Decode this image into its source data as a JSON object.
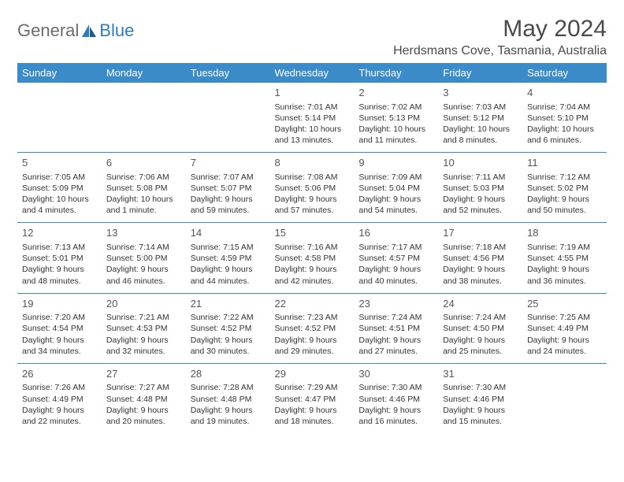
{
  "logo": {
    "general": "General",
    "blue": "Blue"
  },
  "title": "May 2024",
  "location": "Herdsmans Cove, Tasmania, Australia",
  "colors": {
    "header_bg": "#3b8bc9",
    "header_text": "#ffffff",
    "border": "#3b8bc9",
    "text": "#333333",
    "title_text": "#4a4a4a",
    "logo_general": "#6b6b6b",
    "logo_blue": "#2d7cc0"
  },
  "day_headers": [
    "Sunday",
    "Monday",
    "Tuesday",
    "Wednesday",
    "Thursday",
    "Friday",
    "Saturday"
  ],
  "weeks": [
    [
      null,
      null,
      null,
      {
        "n": "1",
        "sr": "Sunrise: 7:01 AM",
        "ss": "Sunset: 5:14 PM",
        "dl": "Daylight: 10 hours and 13 minutes."
      },
      {
        "n": "2",
        "sr": "Sunrise: 7:02 AM",
        "ss": "Sunset: 5:13 PM",
        "dl": "Daylight: 10 hours and 11 minutes."
      },
      {
        "n": "3",
        "sr": "Sunrise: 7:03 AM",
        "ss": "Sunset: 5:12 PM",
        "dl": "Daylight: 10 hours and 8 minutes."
      },
      {
        "n": "4",
        "sr": "Sunrise: 7:04 AM",
        "ss": "Sunset: 5:10 PM",
        "dl": "Daylight: 10 hours and 6 minutes."
      }
    ],
    [
      {
        "n": "5",
        "sr": "Sunrise: 7:05 AM",
        "ss": "Sunset: 5:09 PM",
        "dl": "Daylight: 10 hours and 4 minutes."
      },
      {
        "n": "6",
        "sr": "Sunrise: 7:06 AM",
        "ss": "Sunset: 5:08 PM",
        "dl": "Daylight: 10 hours and 1 minute."
      },
      {
        "n": "7",
        "sr": "Sunrise: 7:07 AM",
        "ss": "Sunset: 5:07 PM",
        "dl": "Daylight: 9 hours and 59 minutes."
      },
      {
        "n": "8",
        "sr": "Sunrise: 7:08 AM",
        "ss": "Sunset: 5:06 PM",
        "dl": "Daylight: 9 hours and 57 minutes."
      },
      {
        "n": "9",
        "sr": "Sunrise: 7:09 AM",
        "ss": "Sunset: 5:04 PM",
        "dl": "Daylight: 9 hours and 54 minutes."
      },
      {
        "n": "10",
        "sr": "Sunrise: 7:11 AM",
        "ss": "Sunset: 5:03 PM",
        "dl": "Daylight: 9 hours and 52 minutes."
      },
      {
        "n": "11",
        "sr": "Sunrise: 7:12 AM",
        "ss": "Sunset: 5:02 PM",
        "dl": "Daylight: 9 hours and 50 minutes."
      }
    ],
    [
      {
        "n": "12",
        "sr": "Sunrise: 7:13 AM",
        "ss": "Sunset: 5:01 PM",
        "dl": "Daylight: 9 hours and 48 minutes."
      },
      {
        "n": "13",
        "sr": "Sunrise: 7:14 AM",
        "ss": "Sunset: 5:00 PM",
        "dl": "Daylight: 9 hours and 46 minutes."
      },
      {
        "n": "14",
        "sr": "Sunrise: 7:15 AM",
        "ss": "Sunset: 4:59 PM",
        "dl": "Daylight: 9 hours and 44 minutes."
      },
      {
        "n": "15",
        "sr": "Sunrise: 7:16 AM",
        "ss": "Sunset: 4:58 PM",
        "dl": "Daylight: 9 hours and 42 minutes."
      },
      {
        "n": "16",
        "sr": "Sunrise: 7:17 AM",
        "ss": "Sunset: 4:57 PM",
        "dl": "Daylight: 9 hours and 40 minutes."
      },
      {
        "n": "17",
        "sr": "Sunrise: 7:18 AM",
        "ss": "Sunset: 4:56 PM",
        "dl": "Daylight: 9 hours and 38 minutes."
      },
      {
        "n": "18",
        "sr": "Sunrise: 7:19 AM",
        "ss": "Sunset: 4:55 PM",
        "dl": "Daylight: 9 hours and 36 minutes."
      }
    ],
    [
      {
        "n": "19",
        "sr": "Sunrise: 7:20 AM",
        "ss": "Sunset: 4:54 PM",
        "dl": "Daylight: 9 hours and 34 minutes."
      },
      {
        "n": "20",
        "sr": "Sunrise: 7:21 AM",
        "ss": "Sunset: 4:53 PM",
        "dl": "Daylight: 9 hours and 32 minutes."
      },
      {
        "n": "21",
        "sr": "Sunrise: 7:22 AM",
        "ss": "Sunset: 4:52 PM",
        "dl": "Daylight: 9 hours and 30 minutes."
      },
      {
        "n": "22",
        "sr": "Sunrise: 7:23 AM",
        "ss": "Sunset: 4:52 PM",
        "dl": "Daylight: 9 hours and 29 minutes."
      },
      {
        "n": "23",
        "sr": "Sunrise: 7:24 AM",
        "ss": "Sunset: 4:51 PM",
        "dl": "Daylight: 9 hours and 27 minutes."
      },
      {
        "n": "24",
        "sr": "Sunrise: 7:24 AM",
        "ss": "Sunset: 4:50 PM",
        "dl": "Daylight: 9 hours and 25 minutes."
      },
      {
        "n": "25",
        "sr": "Sunrise: 7:25 AM",
        "ss": "Sunset: 4:49 PM",
        "dl": "Daylight: 9 hours and 24 minutes."
      }
    ],
    [
      {
        "n": "26",
        "sr": "Sunrise: 7:26 AM",
        "ss": "Sunset: 4:49 PM",
        "dl": "Daylight: 9 hours and 22 minutes."
      },
      {
        "n": "27",
        "sr": "Sunrise: 7:27 AM",
        "ss": "Sunset: 4:48 PM",
        "dl": "Daylight: 9 hours and 20 minutes."
      },
      {
        "n": "28",
        "sr": "Sunrise: 7:28 AM",
        "ss": "Sunset: 4:48 PM",
        "dl": "Daylight: 9 hours and 19 minutes."
      },
      {
        "n": "29",
        "sr": "Sunrise: 7:29 AM",
        "ss": "Sunset: 4:47 PM",
        "dl": "Daylight: 9 hours and 18 minutes."
      },
      {
        "n": "30",
        "sr": "Sunrise: 7:30 AM",
        "ss": "Sunset: 4:46 PM",
        "dl": "Daylight: 9 hours and 16 minutes."
      },
      {
        "n": "31",
        "sr": "Sunrise: 7:30 AM",
        "ss": "Sunset: 4:46 PM",
        "dl": "Daylight: 9 hours and 15 minutes."
      },
      null
    ]
  ]
}
